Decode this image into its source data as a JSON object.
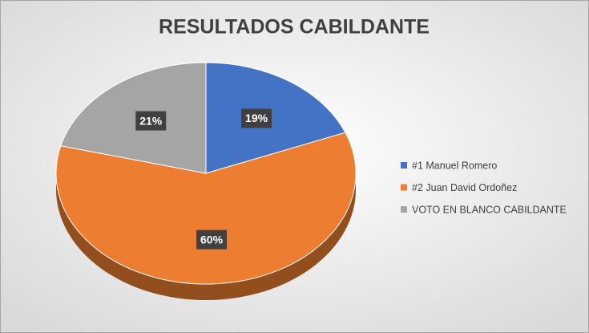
{
  "chart_data": {
    "type": "pie",
    "title": "RESULTADOS CABILDANTE",
    "categories": [
      "#1 Manuel Romero",
      "#2 Juan David Ordoñez",
      "VOTO EN BLANCO CABILDANTE"
    ],
    "values": [
      19,
      60,
      21
    ],
    "value_labels": [
      "19%",
      "60%",
      "21%"
    ],
    "colors": [
      "#4472c4",
      "#ed7d31",
      "#a5a5a5"
    ],
    "legend": "right"
  }
}
